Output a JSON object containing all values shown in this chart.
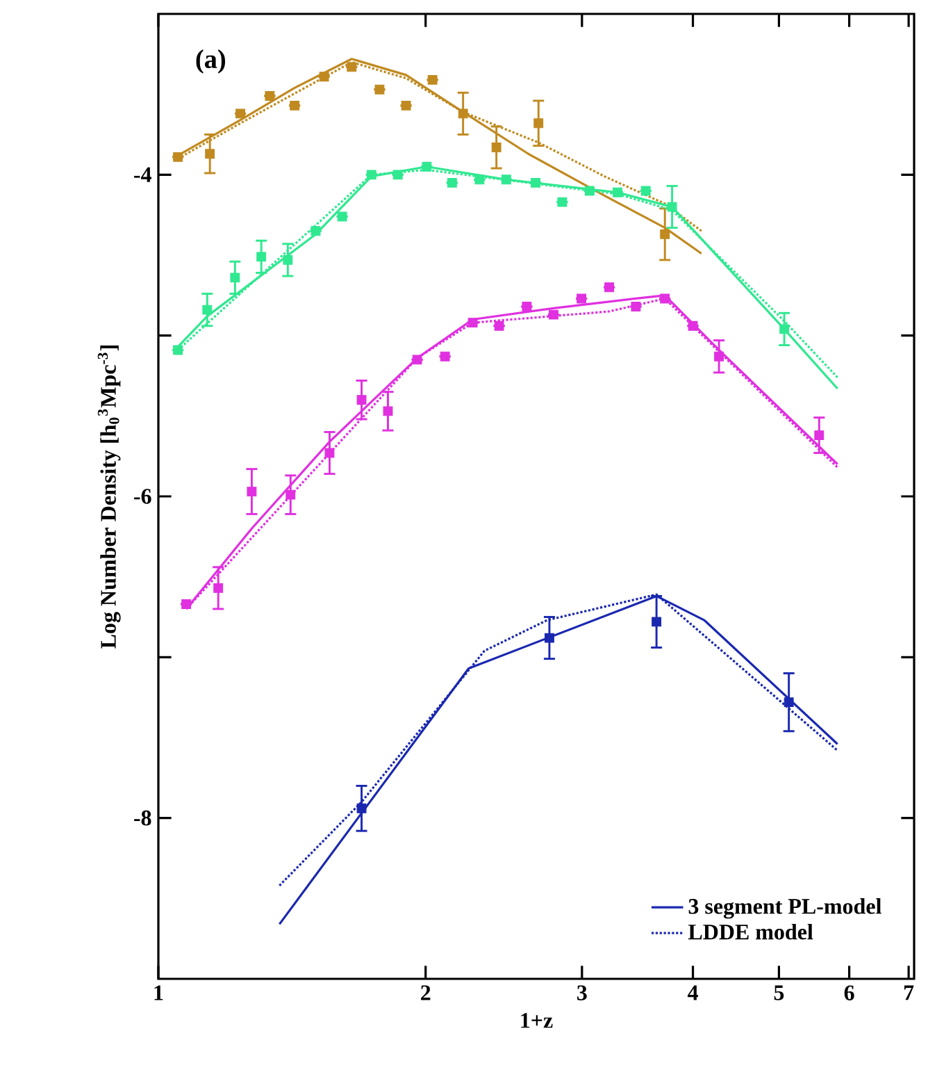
{
  "chart_data": {
    "type": "scatter",
    "xlabel": "1+z",
    "ylabel": "Log Number Density [h$_{0}$$^{3}$Mpc$^{-3}$]",
    "annotations": [
      "(a)"
    ],
    "log": "x",
    "xlim": [
      1,
      7.1
    ],
    "ylim": [
      -9,
      -3
    ],
    "xticks": [
      1,
      2,
      3,
      4,
      5,
      6,
      7
    ],
    "yticks": [
      -8,
      {
        "value": -7,
        "label": null
      },
      -6,
      {
        "value": -5,
        "label": null
      },
      -4
    ],
    "legend": "bottom right",
    "series": [
      {
        "marker": "square",
        "color": "#c08a20",
        "x": [
          1.052,
          1.143,
          1.237,
          1.335,
          1.424,
          1.537,
          1.651,
          1.775,
          1.901,
          2.036,
          2.204,
          2.403,
          2.68,
          3.72
        ],
        "values": [
          -3.89,
          -3.87,
          -3.62,
          -3.51,
          -3.57,
          -3.39,
          -3.33,
          -3.47,
          -3.57,
          -3.41,
          -3.62,
          -3.83,
          -3.68,
          -4.37
        ],
        "errors": [
          null,
          0.12,
          null,
          null,
          null,
          null,
          null,
          null,
          null,
          null,
          0.13,
          0.13,
          0.14,
          0.16
        ]
      },
      {
        "type": "line",
        "color": "#c08a20",
        "line_style": "solid",
        "x": [
          1.052,
          1.237,
          1.424,
          1.651,
          1.901,
          2.204,
          2.61,
          3.18,
          3.72,
          4.09
        ],
        "values": [
          -3.88,
          -3.66,
          -3.46,
          -3.28,
          -3.38,
          -3.61,
          -3.87,
          -4.13,
          -4.33,
          -4.49
        ]
      },
      {
        "type": "line",
        "color": "#c08a20",
        "line_style": "dotted",
        "x": [
          1.052,
          1.237,
          1.651,
          1.901,
          2.204,
          2.68,
          3.18,
          3.72,
          4.09
        ],
        "values": [
          -3.9,
          -3.68,
          -3.3,
          -3.4,
          -3.61,
          -3.8,
          -4.01,
          -4.18,
          -4.35
        ]
      },
      {
        "marker": "square",
        "color": "#30e890",
        "x": [
          1.052,
          1.135,
          1.22,
          1.306,
          1.399,
          1.504,
          1.611,
          1.738,
          1.861,
          2.006,
          2.142,
          2.3,
          2.465,
          2.66,
          2.85,
          3.06,
          3.29,
          3.54,
          3.79,
          5.07
        ],
        "values": [
          -5.09,
          -4.84,
          -4.64,
          -4.51,
          -4.53,
          -4.35,
          -4.26,
          -4.0,
          -4.0,
          -3.95,
          -4.05,
          -4.03,
          -4.03,
          -4.05,
          -4.17,
          -4.1,
          -4.11,
          -4.1,
          -4.2,
          -4.96
        ],
        "errors": [
          null,
          0.1,
          0.1,
          0.1,
          0.1,
          null,
          null,
          null,
          null,
          null,
          null,
          null,
          null,
          null,
          null,
          null,
          null,
          null,
          0.13,
          0.1
        ]
      },
      {
        "type": "line",
        "color": "#30e890",
        "line_style": "solid",
        "x": [
          1.052,
          1.135,
          1.504,
          1.738,
          2.006,
          2.465,
          3.29,
          3.79,
          5.07,
          5.82
        ],
        "values": [
          -5.07,
          -4.88,
          -4.37,
          -4.01,
          -3.95,
          -4.03,
          -4.11,
          -4.2,
          -4.96,
          -5.33
        ]
      },
      {
        "type": "line",
        "color": "#30e890",
        "line_style": "dotted",
        "x": [
          1.052,
          1.738,
          2.006,
          3.29,
          3.79,
          5.07,
          5.82
        ],
        "values": [
          -5.09,
          -4.0,
          -3.97,
          -4.12,
          -4.22,
          -4.91,
          -5.26
        ]
      },
      {
        "marker": "square",
        "color": "#e030e0",
        "x": [
          1.075,
          1.168,
          1.274,
          1.409,
          1.559,
          1.694,
          1.814,
          1.957,
          2.103,
          2.26,
          2.42,
          2.6,
          2.787,
          2.996,
          3.22,
          3.45,
          3.72,
          4.0,
          4.28,
          5.55
        ],
        "values": [
          -6.67,
          -6.57,
          -5.97,
          -5.99,
          -5.73,
          -5.4,
          -5.47,
          -5.15,
          -5.13,
          -4.92,
          -4.94,
          -4.82,
          -4.87,
          -4.77,
          -4.7,
          -4.82,
          -4.77,
          -4.94,
          -5.13,
          -5.62
        ],
        "errors": [
          null,
          0.13,
          0.14,
          0.12,
          0.13,
          0.12,
          0.12,
          null,
          null,
          null,
          null,
          null,
          null,
          null,
          null,
          null,
          null,
          null,
          0.1,
          0.11
        ]
      },
      {
        "type": "line",
        "color": "#e030e0",
        "line_style": "solid",
        "x": [
          1.075,
          1.274,
          1.559,
          1.957,
          2.26,
          2.787,
          3.45,
          3.72,
          4.28,
          5.82
        ],
        "values": [
          -6.7,
          -6.2,
          -5.66,
          -5.14,
          -4.9,
          -4.83,
          -4.77,
          -4.75,
          -5.09,
          -5.8
        ]
      },
      {
        "type": "line",
        "color": "#e030e0",
        "line_style": "dotted",
        "x": [
          1.075,
          1.957,
          2.26,
          3.22,
          3.72,
          4.28,
          5.82
        ],
        "values": [
          -6.7,
          -5.14,
          -4.92,
          -4.85,
          -4.77,
          -5.1,
          -5.82
        ]
      },
      {
        "marker": "square",
        "color": "#1a28b0",
        "x": [
          1.694,
          2.757,
          3.64,
          5.13
        ],
        "values": [
          -7.94,
          -6.88,
          -6.78,
          -7.28
        ],
        "errors": [
          0.14,
          0.13,
          0.16,
          0.18
        ]
      },
      {
        "type": "line",
        "name": "3 segment PL-model",
        "color": "#1a28b0",
        "line_style": "solid",
        "x": [
          1.369,
          2.236,
          3.64,
          4.12,
          5.82
        ],
        "values": [
          -8.66,
          -7.07,
          -6.62,
          -6.77,
          -7.54
        ]
      },
      {
        "type": "line",
        "name": "LDDE model",
        "color": "#1a28b0",
        "line_style": "dotted",
        "x": [
          1.369,
          1.694,
          2.33,
          2.74,
          3.64,
          5.82
        ],
        "values": [
          -8.42,
          -7.9,
          -6.96,
          -6.77,
          -6.61,
          -7.58
        ]
      }
    ]
  }
}
